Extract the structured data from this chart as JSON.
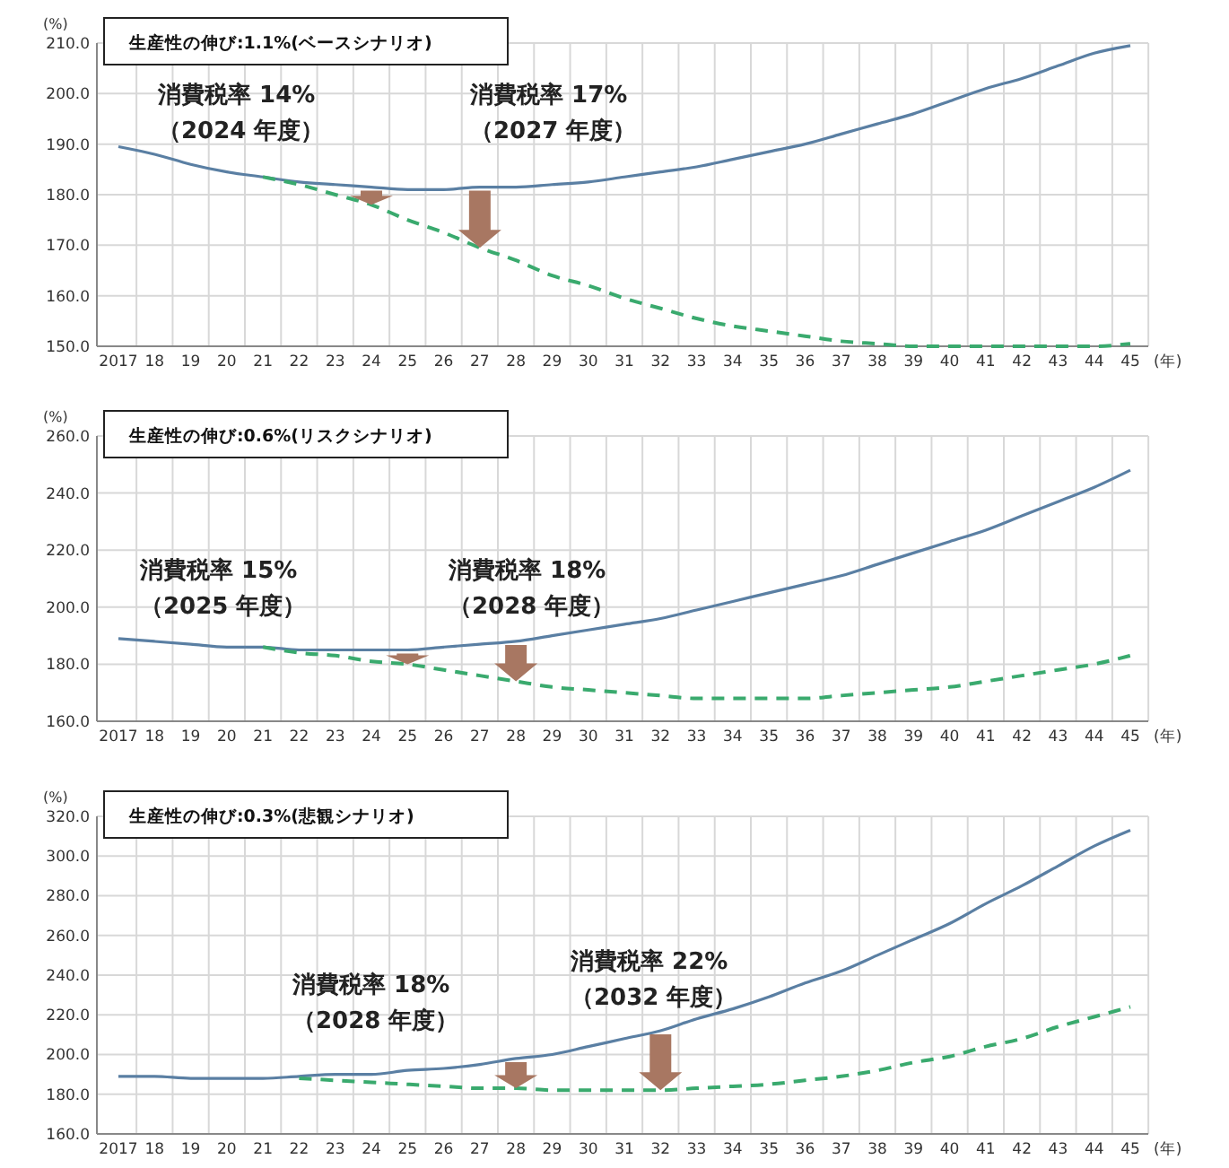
{
  "chart_data": [
    {
      "type": "line",
      "title": "生産性の伸び:1.1%(ベースシナリオ)",
      "ylabel": "(%)",
      "xlabel": "(年)",
      "categories": [
        "2017",
        "18",
        "19",
        "20",
        "21",
        "22",
        "23",
        "24",
        "25",
        "26",
        "27",
        "28",
        "29",
        "30",
        "31",
        "32",
        "33",
        "34",
        "35",
        "36",
        "37",
        "38",
        "39",
        "40",
        "41",
        "42",
        "43",
        "44",
        "45"
      ],
      "series": [
        {
          "color": "#5a7fa3",
          "line_style": "solid",
          "values": [
            189.5,
            188,
            186,
            184.5,
            183.5,
            182.5,
            182,
            181.5,
            181,
            181,
            181.5,
            181.5,
            182,
            182.5,
            183.5,
            184.5,
            185.5,
            187,
            188.5,
            190,
            192,
            194,
            196,
            198.5,
            201,
            203,
            205.5,
            208,
            209.5
          ]
        },
        {
          "color": "#3aaa6e",
          "line_style": "dashed",
          "values": [
            null,
            null,
            null,
            null,
            183.5,
            182,
            180,
            178,
            175,
            172.5,
            169.5,
            167,
            164,
            162,
            159.5,
            157.5,
            155.5,
            154,
            153,
            152,
            151,
            150.5,
            150,
            150,
            150,
            150,
            150,
            150,
            150.5
          ]
        }
      ],
      "ylim": [
        150,
        210
      ],
      "yticks": [
        {
          "value": 150,
          "label": "150.0"
        },
        {
          "value": 160,
          "label": "160.0"
        },
        {
          "value": 170,
          "label": "170.0"
        },
        {
          "value": 180,
          "label": "180.0"
        },
        {
          "value": 190,
          "label": "190.0"
        },
        {
          "value": 200,
          "label": "200.0"
        },
        {
          "value": 210,
          "label": "210.0"
        }
      ],
      "grid": true,
      "annotations": [
        "消費税率 14%\n（2024 年度）",
        "消費税率 17%\n（2027 年度）"
      ]
    },
    {
      "type": "line",
      "title": "生産性の伸び:0.6%(リスクシナリオ)",
      "ylabel": "(%)",
      "xlabel": "(年)",
      "categories": [
        "2017",
        "18",
        "19",
        "20",
        "21",
        "22",
        "23",
        "24",
        "25",
        "26",
        "27",
        "28",
        "29",
        "30",
        "31",
        "32",
        "33",
        "34",
        "35",
        "36",
        "37",
        "38",
        "39",
        "40",
        "41",
        "42",
        "43",
        "44",
        "45"
      ],
      "series": [
        {
          "color": "#5a7fa3",
          "line_style": "solid",
          "values": [
            189,
            188,
            187,
            186,
            186,
            185,
            185,
            185,
            185,
            186,
            187,
            188,
            190,
            192,
            194,
            196,
            199,
            202,
            205,
            208,
            211,
            215,
            219,
            223,
            227,
            232,
            237,
            242,
            248
          ]
        },
        {
          "color": "#3aaa6e",
          "line_style": "dashed",
          "values": [
            null,
            null,
            null,
            null,
            186,
            184,
            183,
            181,
            180,
            178,
            176,
            174,
            172,
            171,
            170,
            169,
            168,
            168,
            168,
            168,
            169,
            170,
            171,
            172,
            174,
            176,
            178,
            180,
            183
          ]
        }
      ],
      "ylim": [
        160,
        260
      ],
      "yticks": [
        {
          "value": 160,
          "label": "160.0"
        },
        {
          "value": 180,
          "label": "180.0"
        },
        {
          "value": 200,
          "label": "200.0"
        },
        {
          "value": 220,
          "label": "220.0"
        },
        {
          "value": 240,
          "label": "240.0"
        },
        {
          "value": 260,
          "label": "260.0"
        }
      ],
      "grid": true,
      "annotations": [
        "消費税率 15%\n（2025 年度）",
        "消費税率 18%\n（2028 年度）"
      ]
    },
    {
      "type": "line",
      "title": "生産性の伸び:0.3%(悲観シナリオ)",
      "ylabel": "(%)",
      "xlabel": "(年)",
      "categories": [
        "2017",
        "18",
        "19",
        "20",
        "21",
        "22",
        "23",
        "24",
        "25",
        "26",
        "27",
        "28",
        "29",
        "30",
        "31",
        "32",
        "33",
        "34",
        "35",
        "36",
        "37",
        "38",
        "39",
        "40",
        "41",
        "42",
        "43",
        "44",
        "45"
      ],
      "series": [
        {
          "color": "#5a7fa3",
          "line_style": "solid",
          "values": [
            189,
            189,
            188,
            188,
            188,
            189,
            190,
            190,
            192,
            193,
            195,
            198,
            200,
            204,
            208,
            212,
            218,
            223,
            229,
            236,
            242,
            250,
            258,
            266,
            276,
            285,
            295,
            305,
            313
          ]
        },
        {
          "color": "#3aaa6e",
          "line_style": "dashed",
          "values": [
            null,
            null,
            null,
            null,
            null,
            188,
            187,
            186,
            185,
            184,
            183,
            183,
            182,
            182,
            182,
            182,
            183,
            184,
            185,
            187,
            189,
            192,
            196,
            199,
            204,
            208,
            214,
            219,
            224
          ]
        }
      ],
      "ylim": [
        160,
        320
      ],
      "yticks": [
        {
          "value": 160,
          "label": "160.0"
        },
        {
          "value": 180,
          "label": "180.0"
        },
        {
          "value": 200,
          "label": "200.0"
        },
        {
          "value": 220,
          "label": "220.0"
        },
        {
          "value": 240,
          "label": "240.0"
        },
        {
          "value": 260,
          "label": "260.0"
        },
        {
          "value": 280,
          "label": "280.0"
        },
        {
          "value": 300,
          "label": "300.0"
        },
        {
          "value": 320,
          "label": "320.0"
        }
      ],
      "grid": true,
      "annotations": [
        "消費税率 18%\n（2028 年度）",
        "消費税率 22%\n（2032 年度）"
      ]
    }
  ]
}
